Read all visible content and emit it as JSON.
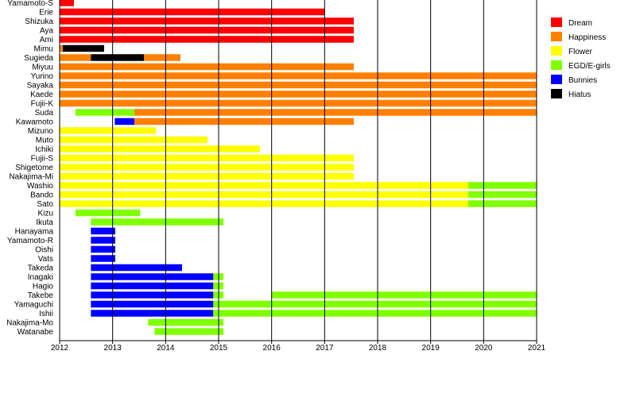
{
  "chart_data": {
    "type": "timeline",
    "xlim": [
      2012,
      2021
    ],
    "x_ticks": [
      "2012",
      "2013",
      "2014",
      "2015",
      "2016",
      "2017",
      "2018",
      "2019",
      "2020",
      "2021"
    ],
    "grid": "vertical",
    "legend_placement": "right",
    "legend": [
      {
        "name": "Dream",
        "color": "#ff0000"
      },
      {
        "name": "Happiness",
        "color": "#ff8000"
      },
      {
        "name": "Flower",
        "color": "#ffff00"
      },
      {
        "name": "EGD/E-girls",
        "color": "#80ff00"
      },
      {
        "name": "Bunnies",
        "color": "#0000ff"
      },
      {
        "name": "Hiatus",
        "color": "#000000"
      }
    ],
    "rows": [
      {
        "name": "Yamamoto-S",
        "segments": [
          [
            "Dream",
            2012.0,
            2012.27
          ]
        ]
      },
      {
        "name": "Erie",
        "segments": [
          [
            "Dream",
            2012.0,
            2017.0
          ]
        ]
      },
      {
        "name": "Shizuka",
        "segments": [
          [
            "Dream",
            2012.0,
            2017.55
          ]
        ]
      },
      {
        "name": "Aya",
        "segments": [
          [
            "Dream",
            2012.0,
            2017.55
          ]
        ]
      },
      {
        "name": "Ami",
        "segments": [
          [
            "Dream",
            2012.0,
            2017.55
          ]
        ]
      },
      {
        "name": "Mimu",
        "segments": [
          [
            "Happiness",
            2012.0,
            2012.06
          ],
          [
            "Hiatus",
            2012.06,
            2012.84
          ]
        ]
      },
      {
        "name": "Sugieda",
        "segments": [
          [
            "Happiness",
            2012.0,
            2012.59
          ],
          [
            "Hiatus",
            2012.59,
            2013.59
          ],
          [
            "Happiness",
            2013.59,
            2014.28
          ]
        ]
      },
      {
        "name": "Miyuu",
        "segments": [
          [
            "Happiness",
            2012.0,
            2017.55
          ]
        ]
      },
      {
        "name": "Yurino",
        "segments": [
          [
            "Happiness",
            2012.0,
            2021.0
          ]
        ]
      },
      {
        "name": "Sayaka",
        "segments": [
          [
            "Happiness",
            2012.0,
            2021.0
          ]
        ]
      },
      {
        "name": "Kaede",
        "segments": [
          [
            "Happiness",
            2012.0,
            2021.0
          ]
        ]
      },
      {
        "name": "Fujii-K",
        "segments": [
          [
            "Happiness",
            2012.0,
            2021.0
          ]
        ]
      },
      {
        "name": "Suda",
        "segments": [
          [
            "EGD/E-girls",
            2012.3,
            2013.41
          ],
          [
            "Happiness",
            2013.41,
            2021.0
          ]
        ]
      },
      {
        "name": "Kawamoto",
        "segments": [
          [
            "Bunnies",
            2013.04,
            2013.41
          ],
          [
            "Happiness",
            2013.41,
            2017.55
          ]
        ]
      },
      {
        "name": "Mizuno",
        "segments": [
          [
            "Flower",
            2012.0,
            2013.82
          ]
        ]
      },
      {
        "name": "Muto",
        "segments": [
          [
            "Flower",
            2012.0,
            2014.79
          ]
        ]
      },
      {
        "name": "Ichiki",
        "segments": [
          [
            "Flower",
            2012.0,
            2015.78
          ]
        ]
      },
      {
        "name": "Fujii-S",
        "segments": [
          [
            "Flower",
            2012.0,
            2017.55
          ]
        ]
      },
      {
        "name": "Shigetome",
        "segments": [
          [
            "Flower",
            2012.0,
            2017.55
          ]
        ]
      },
      {
        "name": "Nakajima-Mi",
        "segments": [
          [
            "Flower",
            2012.0,
            2017.55
          ]
        ]
      },
      {
        "name": "Washio",
        "segments": [
          [
            "Flower",
            2012.0,
            2019.71
          ],
          [
            "EGD/E-girls",
            2019.71,
            2021.0
          ]
        ]
      },
      {
        "name": "Bando",
        "segments": [
          [
            "Flower",
            2012.0,
            2019.71
          ],
          [
            "EGD/E-girls",
            2019.71,
            2021.0
          ]
        ]
      },
      {
        "name": "Sato",
        "segments": [
          [
            "Flower",
            2012.0,
            2019.71
          ],
          [
            "EGD/E-girls",
            2019.71,
            2021.0
          ]
        ]
      },
      {
        "name": "Kizu",
        "segments": [
          [
            "EGD/E-girls",
            2012.3,
            2013.52
          ]
        ]
      },
      {
        "name": "Ikuta",
        "segments": [
          [
            "EGD/E-girls",
            2012.59,
            2015.09
          ]
        ]
      },
      {
        "name": "Hanayama",
        "segments": [
          [
            "Bunnies",
            2012.59,
            2013.05
          ]
        ]
      },
      {
        "name": "Yamamoto-R",
        "segments": [
          [
            "Bunnies",
            2012.59,
            2013.05
          ]
        ]
      },
      {
        "name": "Oishi",
        "segments": [
          [
            "Bunnies",
            2012.59,
            2013.05
          ]
        ]
      },
      {
        "name": "Vats",
        "segments": [
          [
            "Bunnies",
            2012.59,
            2013.05
          ]
        ]
      },
      {
        "name": "Takeda",
        "segments": [
          [
            "Bunnies",
            2012.59,
            2014.31
          ]
        ]
      },
      {
        "name": "Inagaki",
        "segments": [
          [
            "Bunnies",
            2012.59,
            2014.9
          ],
          [
            "EGD/E-girls",
            2014.9,
            2015.09
          ]
        ]
      },
      {
        "name": "Hagio",
        "segments": [
          [
            "Bunnies",
            2012.59,
            2014.9
          ],
          [
            "EGD/E-girls",
            2014.9,
            2015.09
          ]
        ]
      },
      {
        "name": "Takebe",
        "segments": [
          [
            "Bunnies",
            2012.59,
            2014.9
          ],
          [
            "EGD/E-girls",
            2014.9,
            2015.09
          ],
          [
            "EGD/E-girls",
            2016.0,
            2021.0
          ]
        ]
      },
      {
        "name": "Yamaguchi",
        "segments": [
          [
            "Bunnies",
            2012.59,
            2014.9
          ],
          [
            "EGD/E-girls",
            2014.9,
            2021.0
          ]
        ]
      },
      {
        "name": "Ishii",
        "segments": [
          [
            "Bunnies",
            2012.59,
            2014.9
          ],
          [
            "EGD/E-girls",
            2014.9,
            2021.0
          ]
        ]
      },
      {
        "name": "Nakajima-Mo",
        "segments": [
          [
            "EGD/E-girls",
            2013.67,
            2015.09
          ]
        ]
      },
      {
        "name": "Watanabe",
        "segments": [
          [
            "EGD/E-girls",
            2013.79,
            2015.09
          ]
        ]
      }
    ]
  }
}
